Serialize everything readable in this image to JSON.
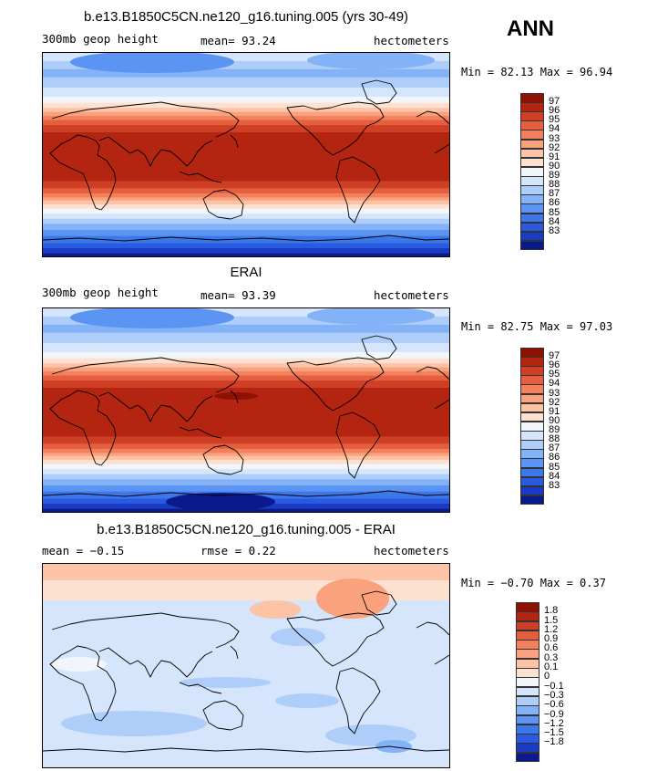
{
  "season": "ANN",
  "panels": [
    {
      "id": "model",
      "title": "b.e13.B1850C5CN.ne120_g16.tuning.005 (yrs 30-49)",
      "left_label": "300mb geop height",
      "mid_label": "mean=  93.24",
      "units": "hectometers",
      "minmax": "Min =  82.13 Max =  96.94",
      "colors": [
        "#0a1a8c",
        "#1a3cc4",
        "#2a5ae0",
        "#3c78ec",
        "#5b94f2",
        "#84b2f7",
        "#afcdf9",
        "#d4e5fc",
        "#f2f6fb",
        "#fde1d0",
        "#fcc3a6",
        "#f9a27d",
        "#f3805c",
        "#e55f3f",
        "#cf3f26",
        "#b32511",
        "#8e1104"
      ],
      "labels": [
        "97",
        "96",
        "95",
        "94",
        "93",
        "92",
        "91",
        "90",
        "89",
        "88",
        "87",
        "86",
        "85",
        "84",
        "83"
      ],
      "warmIdx": 15
    },
    {
      "id": "obs",
      "title": "ERAI",
      "left_label": "300mb geop height",
      "mid_label": "mean=  93.39",
      "units": "hectometers",
      "minmax": "Min =  82.75 Max =  97.03",
      "colors": [
        "#0a1a8c",
        "#1a3cc4",
        "#2a5ae0",
        "#3c78ec",
        "#5b94f2",
        "#84b2f7",
        "#afcdf9",
        "#d4e5fc",
        "#f2f6fb",
        "#fde1d0",
        "#fcc3a6",
        "#f9a27d",
        "#f3805c",
        "#e55f3f",
        "#cf3f26",
        "#b32511",
        "#8e1104"
      ],
      "labels": [
        "97",
        "96",
        "95",
        "94",
        "93",
        "92",
        "91",
        "90",
        "89",
        "88",
        "87",
        "86",
        "85",
        "84",
        "83"
      ],
      "warmIdx": 15
    },
    {
      "id": "diff",
      "title": "b.e13.B1850C5CN.ne120_g16.tuning.005 - ERAI",
      "left_label": "mean =  −0.15",
      "mid_label": "rmse =    0.22",
      "units": "hectometers",
      "minmax": "Min =  −0.70 Max =    0.37",
      "colors": [
        "#0a1a8c",
        "#1a3cc4",
        "#2a5ae0",
        "#3c78ec",
        "#5b94f2",
        "#84b2f7",
        "#afcdf9",
        "#d4e5fc",
        "#f2f6fb",
        "#fde1d0",
        "#fcc3a6",
        "#f9a27d",
        "#f3805c",
        "#e55f3f",
        "#cf3f26",
        "#b32511",
        "#8e1104"
      ],
      "labels": [
        "1.8",
        "1.5",
        "1.2",
        "0.9",
        "0.6",
        "0.3",
        "0.1",
        "0",
        "−0.1",
        "−0.3",
        "−0.6",
        "−0.9",
        "−1.2",
        "−1.5",
        "−1.8"
      ],
      "warmIdx": 8
    }
  ],
  "chart_data": {
    "type": "heatmap",
    "variable": "300mb geop height",
    "units": "hectometers",
    "season": "ANN",
    "maps": [
      {
        "title": "b.e13.B1850C5CN.ne120_g16.tuning.005 (yrs 30-49)",
        "mean": 93.24,
        "min": 82.13,
        "max": 96.94,
        "contour_levels": [
          83,
          84,
          85,
          86,
          87,
          88,
          89,
          90,
          91,
          92,
          93,
          94,
          95,
          96,
          97
        ]
      },
      {
        "title": "ERAI",
        "mean": 93.39,
        "min": 82.75,
        "max": 97.03,
        "contour_levels": [
          83,
          84,
          85,
          86,
          87,
          88,
          89,
          90,
          91,
          92,
          93,
          94,
          95,
          96,
          97
        ]
      },
      {
        "title": "b.e13.B1850C5CN.ne120_g16.tuning.005 - ERAI",
        "mean": -0.15,
        "rmse": 0.22,
        "min": -0.7,
        "max": 0.37,
        "contour_levels": [
          -1.8,
          -1.5,
          -1.2,
          -0.9,
          -0.6,
          -0.3,
          -0.1,
          0,
          0.1,
          0.3,
          0.6,
          0.9,
          1.2,
          1.5,
          1.8
        ]
      }
    ]
  }
}
